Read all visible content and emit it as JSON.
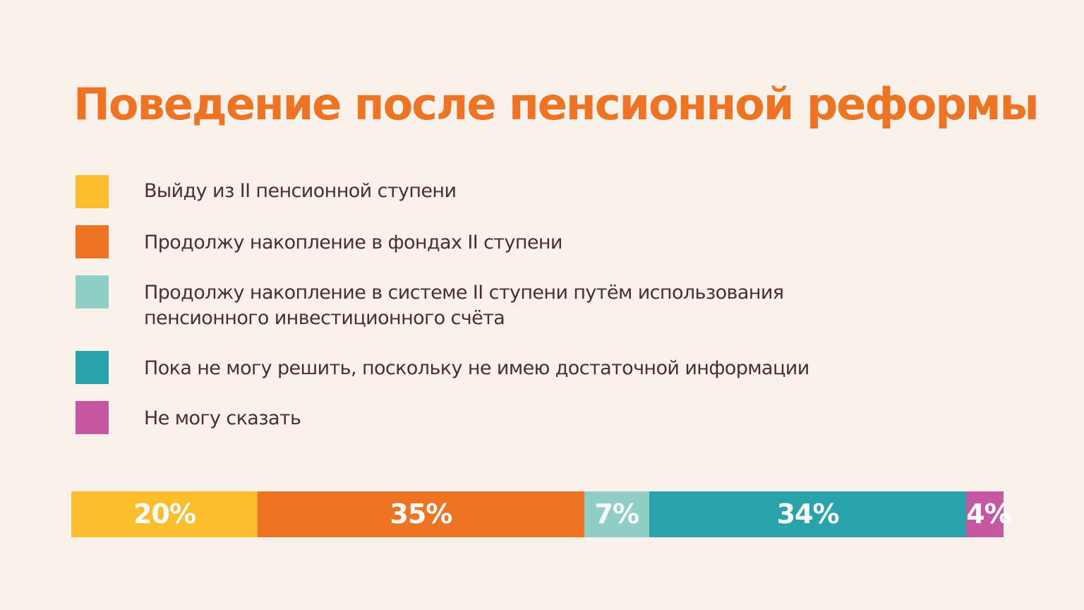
{
  "title": "Поведение после пенсионной реформы",
  "chart_data": {
    "type": "bar",
    "orientation": "horizontal-stacked-100",
    "title": "Поведение после пенсионной реформы",
    "legend_placement": "top-left",
    "grid": false,
    "series": [
      {
        "name": "Выйду из II пенсионной ступени",
        "value": 20,
        "label": "20%",
        "color": "#fcbe2c"
      },
      {
        "name": "Продолжу накопление в фондах II ступени",
        "value": 35,
        "label": "35%",
        "color": "#ee7322"
      },
      {
        "name": "Продолжу накопление в системе II ступени путём использования\nпенсионного инвестиционного счёта",
        "value": 7,
        "label": "7%",
        "color": "#8fcec4"
      },
      {
        "name": "Пока не могу решить, поскольку не имею достаточной информации",
        "value": 34,
        "label": "34%",
        "color": "#2ba3ad"
      },
      {
        "name": "Не могу сказать",
        "value": 4,
        "label": "4%",
        "color": "#c558a0"
      }
    ]
  }
}
